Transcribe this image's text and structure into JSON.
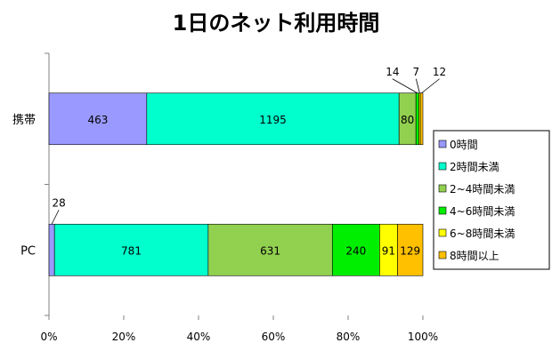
{
  "chart_data": {
    "type": "bar",
    "orientation": "horizontal",
    "stacked": "percent",
    "title": "1日のネット利用時間",
    "categories": [
      "携帯",
      "PC"
    ],
    "series": [
      {
        "name": "0時間",
        "values": [
          463,
          28
        ],
        "color": "#9999ff"
      },
      {
        "name": "2時間未満",
        "values": [
          1195,
          781
        ],
        "color": "#00ffcc"
      },
      {
        "name": "2~4時間未満",
        "values": [
          80,
          631
        ],
        "color": "#92d050"
      },
      {
        "name": "4~6時間未満",
        "values": [
          14,
          240
        ],
        "color": "#00ee00"
      },
      {
        "name": "6~8時間未満",
        "values": [
          7,
          91
        ],
        "color": "#ffff00"
      },
      {
        "name": "8時間以上",
        "values": [
          12,
          129
        ],
        "color": "#ffc000"
      }
    ],
    "xlim": [
      0,
      100
    ],
    "xticks": [
      "0%",
      "20%",
      "40%",
      "60%",
      "80%",
      "100%"
    ],
    "grid": false,
    "legend": "right"
  }
}
